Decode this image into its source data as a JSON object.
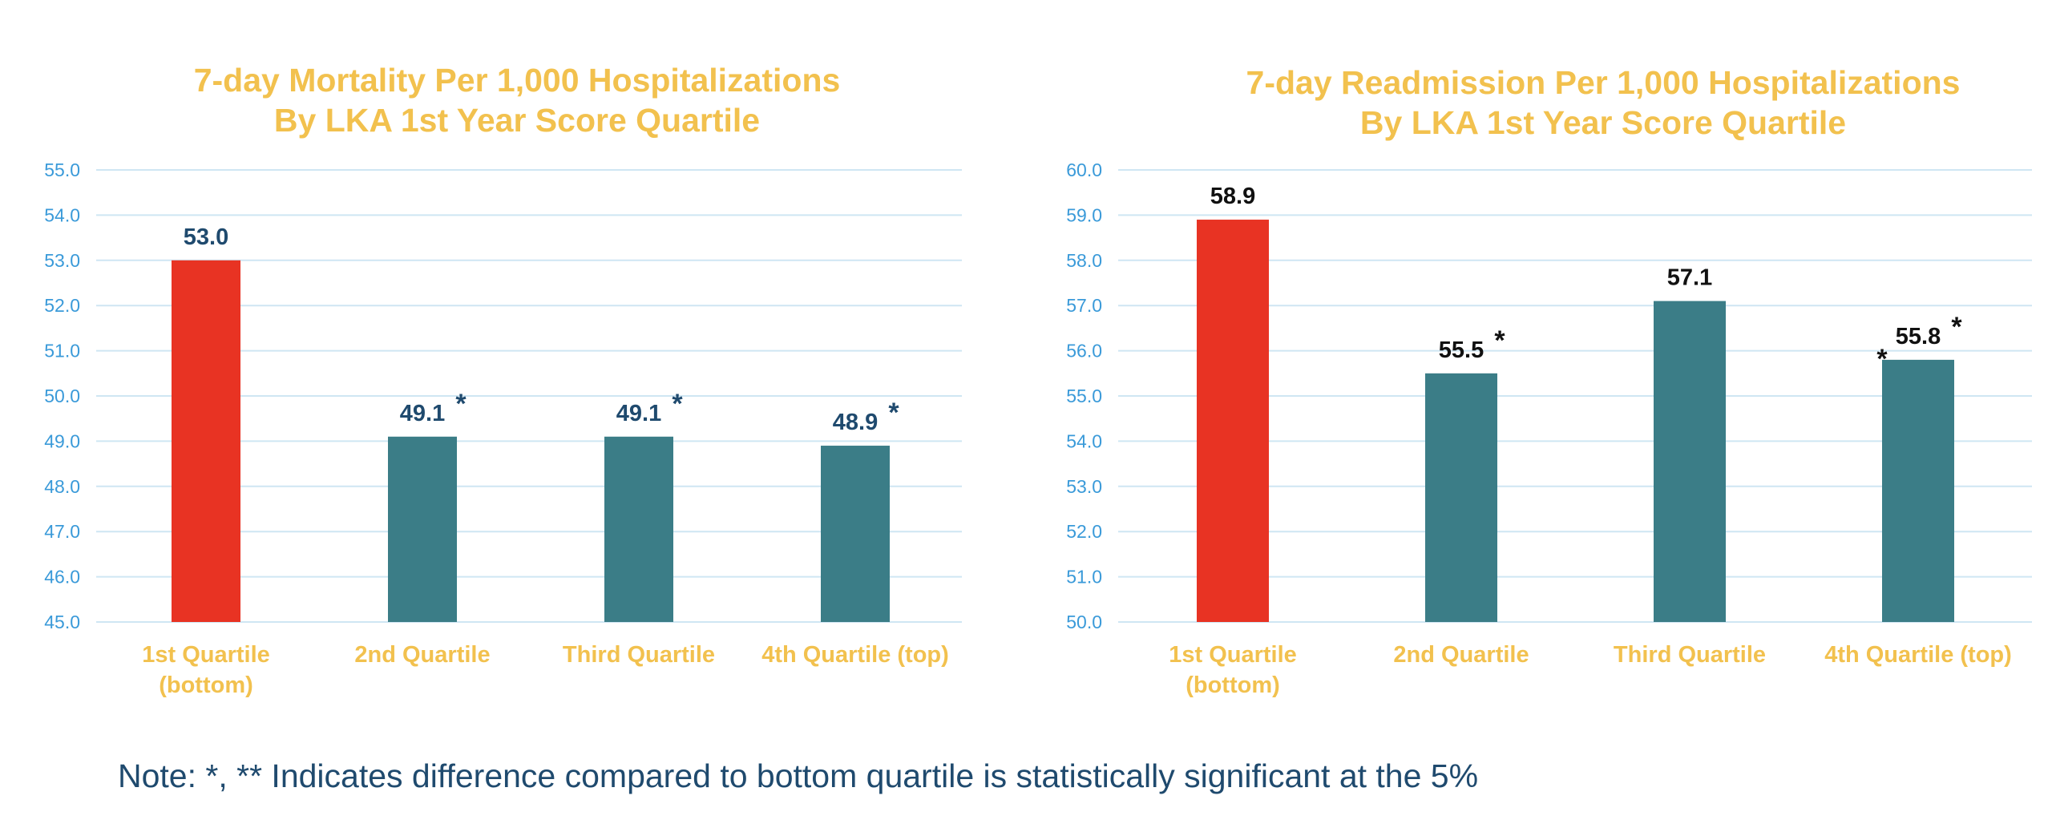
{
  "chart_data": [
    {
      "type": "bar",
      "title": "7-day Mortality Per 1,000 Hospitalizations By LKA 1st Year Score Quartile",
      "title_lines": [
        "7-day Mortality Per 1,000 Hospitalizations",
        "By LKA 1st Year Score Quartile"
      ],
      "categories": [
        "1st Quartile (bottom)",
        "2nd Quartile",
        "Third Quartile",
        "4th Quartile (top)"
      ],
      "category_lines": [
        [
          "1st Quartile",
          "(bottom)"
        ],
        [
          "2nd Quartile"
        ],
        [
          "Third Quartile"
        ],
        [
          "4th Quartile (top)"
        ]
      ],
      "values": [
        53.0,
        49.1,
        49.1,
        48.9
      ],
      "value_labels": [
        "53.0",
        "49.1",
        "49.1",
        "48.9"
      ],
      "significance": [
        "",
        "*",
        "*",
        "*"
      ],
      "bar_colors": [
        "#e83323",
        "#3b7d87",
        "#3b7d87",
        "#3b7d87"
      ],
      "value_label_color": "#1f4a6e",
      "ylim": [
        45.0,
        55.0
      ],
      "yticks": [
        "45.0",
        "46.0",
        "47.0",
        "48.0",
        "49.0",
        "50.0",
        "51.0",
        "52.0",
        "53.0",
        "54.0",
        "55.0"
      ],
      "xlabel": "",
      "ylabel": "",
      "grid": true,
      "legend": false
    },
    {
      "type": "bar",
      "title": "7-day Readmission Per 1,000 Hospitalizations By LKA 1st Year Score Quartile",
      "title_lines": [
        "7-day Readmission Per 1,000 Hospitalizations",
        "By LKA 1st Year Score Quartile"
      ],
      "categories": [
        "1st Quartile (bottom)",
        "2nd Quartile",
        "Third Quartile",
        "4th Quartile (top)"
      ],
      "category_lines": [
        [
          "1st Quartile",
          "(bottom)"
        ],
        [
          "2nd Quartile"
        ],
        [
          "Third Quartile"
        ],
        [
          "4th Quartile (top)"
        ]
      ],
      "values": [
        58.9,
        55.5,
        57.1,
        55.8
      ],
      "value_labels": [
        "58.9",
        "55.5",
        "57.1",
        "55.8"
      ],
      "significance": [
        "",
        "*",
        "",
        "*"
      ],
      "significance_extra": [
        "",
        "",
        "",
        "*"
      ],
      "bar_colors": [
        "#e83323",
        "#3b7d87",
        "#3b7d87",
        "#3b7d87"
      ],
      "value_label_color": "#111111",
      "ylim": [
        50.0,
        60.0
      ],
      "yticks": [
        "50.0",
        "51.0",
        "52.0",
        "53.0",
        "54.0",
        "55.0",
        "56.0",
        "57.0",
        "58.0",
        "59.0",
        "60.0"
      ],
      "xlabel": "",
      "ylabel": "",
      "grid": true,
      "legend": false
    }
  ],
  "note": "Note: *, ** Indicates difference compared to bottom quartile is statistically significant at the 5%",
  "colors": {
    "title": "#f2c14e",
    "category_label": "#f2c14e",
    "tick_label": "#3a9ad9",
    "gridline": "#cfe6f3",
    "highlight_bar": "#e83323",
    "bar": "#3b7d87",
    "note": "#1f4a6e"
  }
}
